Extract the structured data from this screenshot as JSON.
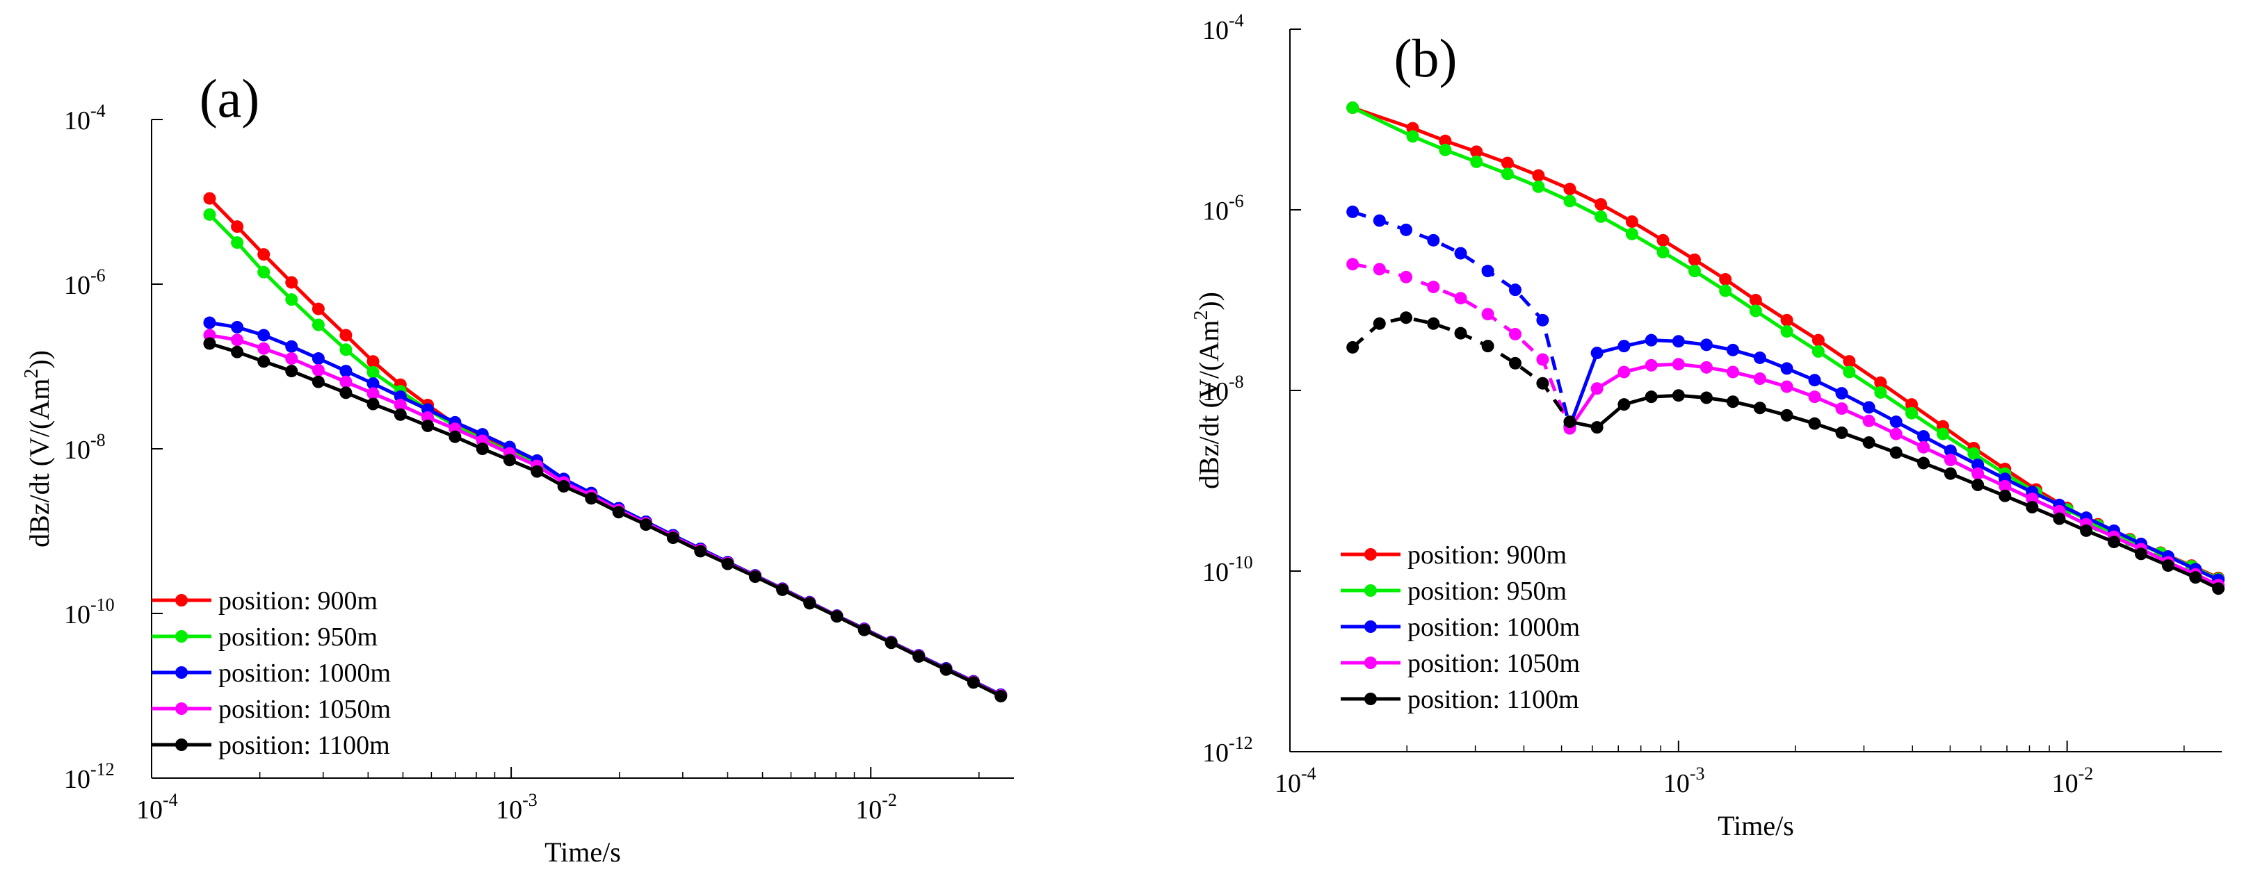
{
  "chart_data": [
    {
      "id": "a",
      "type": "line",
      "panel_label": "(a)",
      "xlabel": "Time/s",
      "ylabel": "dBz/dt (V/(Am",
      "ylabel_sup": "2",
      "ylabel_tail": "))",
      "x_scale": "log",
      "y_scale": "log",
      "xlim": [
        0.0001,
        0.025
      ],
      "ylim": [
        1e-12,
        0.0001
      ],
      "x_ticks": [
        {
          "value": 0.0001,
          "base": "10",
          "exp": "-4"
        },
        {
          "value": 0.001,
          "base": "10",
          "exp": "-3"
        },
        {
          "value": 0.01,
          "base": "10",
          "exp": "-2"
        }
      ],
      "y_ticks": [
        {
          "value": 1e-12,
          "base": "10",
          "exp": "-12"
        },
        {
          "value": 1e-10,
          "base": "10",
          "exp": "-10"
        },
        {
          "value": 1e-08,
          "base": "10",
          "exp": "-8"
        },
        {
          "value": 1e-06,
          "base": "10",
          "exp": "-6"
        },
        {
          "value": 0.0001,
          "base": "10",
          "exp": "-4"
        }
      ],
      "grid": false,
      "legend_position": "bottom-left",
      "x": [
        0.000145,
        0.000173,
        0.000205,
        0.000245,
        0.000291,
        0.000347,
        0.000413,
        0.000492,
        0.000586,
        0.000698,
        0.000832,
        0.00099,
        0.00118,
        0.0014,
        0.00167,
        0.00199,
        0.00237,
        0.00282,
        0.00336,
        0.004,
        0.00477,
        0.00568,
        0.00676,
        0.00805,
        0.00959,
        0.0114,
        0.0136,
        0.0162,
        0.0193,
        0.023
      ],
      "series": [
        {
          "name": "position: 900m",
          "color": "#ff0000",
          "style": "solid",
          "values": [
            1.1e-05,
            5e-06,
            2.3e-06,
            1.05e-06,
            5e-07,
            2.4e-07,
            1.15e-07,
            6e-08,
            3.4e-08,
            2e-08,
            1.35e-08,
            9.4e-09,
            6.6e-09,
            4.2e-09,
            2.9e-09,
            1.9e-09,
            1.3e-09,
            8.9e-10,
            6.1e-10,
            4.2e-10,
            2.9e-10,
            2e-10,
            1.37e-10,
            9.4e-11,
            6.5e-11,
            4.5e-11,
            3.1e-11,
            2.15e-11,
            1.5e-11,
            1.03e-11
          ]
        },
        {
          "name": "position: 950m",
          "color": "#00ee00",
          "style": "solid",
          "values": [
            7e-06,
            3.2e-06,
            1.4e-06,
            6.5e-07,
            3.2e-07,
            1.6e-07,
            8.5e-08,
            5e-08,
            3e-08,
            1.9e-08,
            1.3e-08,
            9.2e-09,
            6.5e-09,
            4.2e-09,
            2.9e-09,
            1.9e-09,
            1.3e-09,
            8.9e-10,
            6.1e-10,
            4.2e-10,
            2.9e-10,
            2e-10,
            1.37e-10,
            9.4e-11,
            6.5e-11,
            4.5e-11,
            3.1e-11,
            2.15e-11,
            1.5e-11,
            1.03e-11
          ]
        },
        {
          "name": "position: 1000m",
          "color": "#0000ff",
          "style": "solid",
          "values": [
            3.4e-07,
            3e-07,
            2.4e-07,
            1.75e-07,
            1.25e-07,
            8.8e-08,
            6.2e-08,
            4.3e-08,
            3e-08,
            2.1e-08,
            1.5e-08,
            1.05e-08,
            7.2e-09,
            4.3e-09,
            2.9e-09,
            1.9e-09,
            1.3e-09,
            8.9e-10,
            6.1e-10,
            4.2e-10,
            2.9e-10,
            2e-10,
            1.37e-10,
            9.4e-11,
            6.5e-11,
            4.5e-11,
            3.1e-11,
            2.15e-11,
            1.5e-11,
            1.03e-11
          ]
        },
        {
          "name": "position: 1050m",
          "color": "#ff00ff",
          "style": "solid",
          "values": [
            2.4e-07,
            2.1e-07,
            1.65e-07,
            1.25e-07,
            9e-08,
            6.5e-08,
            4.7e-08,
            3.4e-08,
            2.4e-08,
            1.75e-08,
            1.25e-08,
            8.8e-09,
            6.2e-09,
            3.9e-09,
            2.7e-09,
            1.8e-09,
            1.25e-09,
            8.6e-10,
            5.9e-10,
            4.1e-10,
            2.85e-10,
            1.97e-10,
            1.35e-10,
            9.3e-11,
            6.4e-11,
            4.45e-11,
            3.05e-11,
            2.1e-11,
            1.48e-11,
            1.01e-11
          ]
        },
        {
          "name": "position: 1100m",
          "color": "#000000",
          "style": "solid",
          "values": [
            1.9e-07,
            1.5e-07,
            1.15e-07,
            8.8e-08,
            6.5e-08,
            4.8e-08,
            3.5e-08,
            2.6e-08,
            1.9e-08,
            1.4e-08,
            1e-08,
            7.3e-09,
            5.3e-09,
            3.5e-09,
            2.5e-09,
            1.7e-09,
            1.2e-09,
            8.3e-10,
            5.7e-10,
            4e-10,
            2.8e-10,
            1.94e-10,
            1.33e-10,
            9.2e-11,
            6.3e-11,
            4.4e-11,
            3e-11,
            2.08e-11,
            1.45e-11,
            9.9e-12
          ]
        }
      ]
    },
    {
      "id": "b",
      "type": "line",
      "panel_label": "(b)",
      "xlabel": "Time/s",
      "ylabel": "dBz/dt (V/(Am",
      "ylabel_sup": "2",
      "ylabel_tail": "))",
      "x_scale": "log",
      "y_scale": "log",
      "xlim": [
        0.0001,
        0.025
      ],
      "ylim": [
        1e-12,
        0.0001
      ],
      "x_ticks": [
        {
          "value": 0.0001,
          "base": "10",
          "exp": "-4"
        },
        {
          "value": 0.001,
          "base": "10",
          "exp": "-3"
        },
        {
          "value": 0.01,
          "base": "10",
          "exp": "-2"
        }
      ],
      "y_ticks": [
        {
          "value": 1e-12,
          "base": "10",
          "exp": "-12"
        },
        {
          "value": 1e-10,
          "base": "10",
          "exp": "-10"
        },
        {
          "value": 1e-08,
          "base": "10",
          "exp": "-8"
        },
        {
          "value": 1e-06,
          "base": "10",
          "exp": "-6"
        },
        {
          "value": 0.0001,
          "base": "10",
          "exp": "-4"
        }
      ],
      "grid": false,
      "legend_position": "bottom-left",
      "series": [
        {
          "name": "position: 900m",
          "color": "#ff0000",
          "style": "solid",
          "x": [
            0.000145,
            0.000207,
            0.000251,
            0.000302,
            0.000363,
            0.000436,
            0.000525,
            0.000631,
            0.000759,
            0.000912,
            0.0011,
            0.00132,
            0.00158,
            0.0019,
            0.00229,
            0.00275,
            0.00331,
            0.00398,
            0.00479,
            0.00575,
            0.00692,
            0.00832,
            0.01,
            0.012,
            0.0145,
            0.0174,
            0.0209,
            0.0245
          ],
          "values": [
            1.35e-05,
            8e-06,
            5.8e-06,
            4.4e-06,
            3.3e-06,
            2.4e-06,
            1.7e-06,
            1.15e-06,
            7.4e-07,
            4.6e-07,
            2.8e-07,
            1.7e-07,
            1e-07,
            6e-08,
            3.6e-08,
            2.1e-08,
            1.22e-08,
            7e-09,
            4e-09,
            2.3e-09,
            1.35e-09,
            8e-10,
            5e-10,
            3.3e-10,
            2.25e-10,
            1.6e-10,
            1.15e-10,
            8.4e-11
          ]
        },
        {
          "name": "position: 950m",
          "color": "#00ee00",
          "style": "solid",
          "x": [
            0.000145,
            0.000207,
            0.000251,
            0.000302,
            0.000363,
            0.000436,
            0.000525,
            0.000631,
            0.000759,
            0.000912,
            0.0011,
            0.00132,
            0.00158,
            0.0019,
            0.00229,
            0.00275,
            0.00331,
            0.00398,
            0.00479,
            0.00575,
            0.00692,
            0.00832,
            0.01,
            0.012,
            0.0145,
            0.0174,
            0.0209,
            0.0245
          ],
          "values": [
            1.35e-05,
            6.5e-06,
            4.6e-06,
            3.4e-06,
            2.5e-06,
            1.8e-06,
            1.25e-06,
            8.4e-07,
            5.4e-07,
            3.4e-07,
            2.1e-07,
            1.27e-07,
            7.6e-08,
            4.5e-08,
            2.7e-08,
            1.6e-08,
            9.5e-09,
            5.6e-09,
            3.3e-09,
            2e-09,
            1.2e-09,
            7.4e-10,
            4.8e-10,
            3.2e-10,
            2.2e-10,
            1.58e-10,
            1.13e-10,
            8.2e-11
          ]
        },
        {
          "name": "position: 1000m",
          "color": "#0000ff",
          "style": "mixed",
          "x": [
            0.000145,
            0.00017,
            0.000199,
            0.000234,
            0.000275,
            0.000323,
            0.00038,
            0.000447,
            0.000525,
            0.000617,
            0.000724,
            0.000851,
            0.001,
            0.00118,
            0.00138,
            0.00162,
            0.0019,
            0.00224,
            0.00263,
            0.00309,
            0.00363,
            0.00427,
            0.00501,
            0.00589,
            0.00692,
            0.00813,
            0.00955,
            0.0112,
            0.0132,
            0.0155,
            0.0182,
            0.0214,
            0.0245
          ],
          "values": [
            9.5e-07,
            7.6e-07,
            6e-07,
            4.6e-07,
            3.3e-07,
            2.1e-07,
            1.3e-07,
            6e-08,
            4e-09,
            2.6e-08,
            3.1e-08,
            3.6e-08,
            3.5e-08,
            3.2e-08,
            2.8e-08,
            2.3e-08,
            1.75e-08,
            1.3e-08,
            9.3e-09,
            6.5e-09,
            4.5e-09,
            3.1e-09,
            2.15e-09,
            1.5e-09,
            1.05e-09,
            7.5e-10,
            5.4e-10,
            3.9e-10,
            2.8e-10,
            2e-10,
            1.45e-10,
            1.05e-10,
            8e-11
          ],
          "dashed_until_index": 8
        },
        {
          "name": "position: 1050m",
          "color": "#ff00ff",
          "style": "mixed",
          "x": [
            0.000145,
            0.00017,
            0.000199,
            0.000234,
            0.000275,
            0.000323,
            0.00038,
            0.000447,
            0.000525,
            0.000617,
            0.000724,
            0.000851,
            0.001,
            0.00118,
            0.00138,
            0.00162,
            0.0019,
            0.00224,
            0.00263,
            0.00309,
            0.00363,
            0.00427,
            0.00501,
            0.00589,
            0.00692,
            0.00813,
            0.00955,
            0.0112,
            0.0132,
            0.0155,
            0.0182,
            0.0214,
            0.0245
          ],
          "values": [
            2.5e-07,
            2.2e-07,
            1.8e-07,
            1.4e-07,
            1.05e-07,
            7e-08,
            4.2e-08,
            2.2e-08,
            3.8e-09,
            1.05e-08,
            1.6e-08,
            1.9e-08,
            1.95e-08,
            1.8e-08,
            1.6e-08,
            1.35e-08,
            1.1e-08,
            8.5e-09,
            6.3e-09,
            4.6e-09,
            3.3e-09,
            2.35e-09,
            1.7e-09,
            1.2e-09,
            8.7e-10,
            6.3e-10,
            4.6e-10,
            3.3e-10,
            2.4e-10,
            1.75e-10,
            1.25e-10,
            9.2e-11,
            7e-11
          ],
          "dashed_until_index": 8
        },
        {
          "name": "position: 1100m",
          "color": "#000000",
          "style": "mixed",
          "x": [
            0.000145,
            0.00017,
            0.000199,
            0.000234,
            0.000275,
            0.000323,
            0.00038,
            0.000447,
            0.000525,
            0.000617,
            0.000724,
            0.000851,
            0.001,
            0.00118,
            0.00138,
            0.00162,
            0.0019,
            0.00224,
            0.00263,
            0.00309,
            0.00363,
            0.00427,
            0.00501,
            0.00589,
            0.00692,
            0.00813,
            0.00955,
            0.0112,
            0.0132,
            0.0155,
            0.0182,
            0.0214,
            0.0245
          ],
          "values": [
            3e-08,
            5.5e-08,
            6.4e-08,
            5.5e-08,
            4.3e-08,
            3.1e-08,
            2e-08,
            1.2e-08,
            4.5e-09,
            3.9e-09,
            7e-09,
            8.5e-09,
            8.8e-09,
            8.3e-09,
            7.5e-09,
            6.4e-09,
            5.3e-09,
            4.3e-09,
            3.4e-09,
            2.65e-09,
            2.05e-09,
            1.57e-09,
            1.2e-09,
            9e-10,
            6.8e-10,
            5.1e-10,
            3.8e-10,
            2.8e-10,
            2.1e-10,
            1.55e-10,
            1.15e-10,
            8.5e-11,
            6.4e-11
          ],
          "dashed_until_index": 8
        }
      ]
    }
  ]
}
